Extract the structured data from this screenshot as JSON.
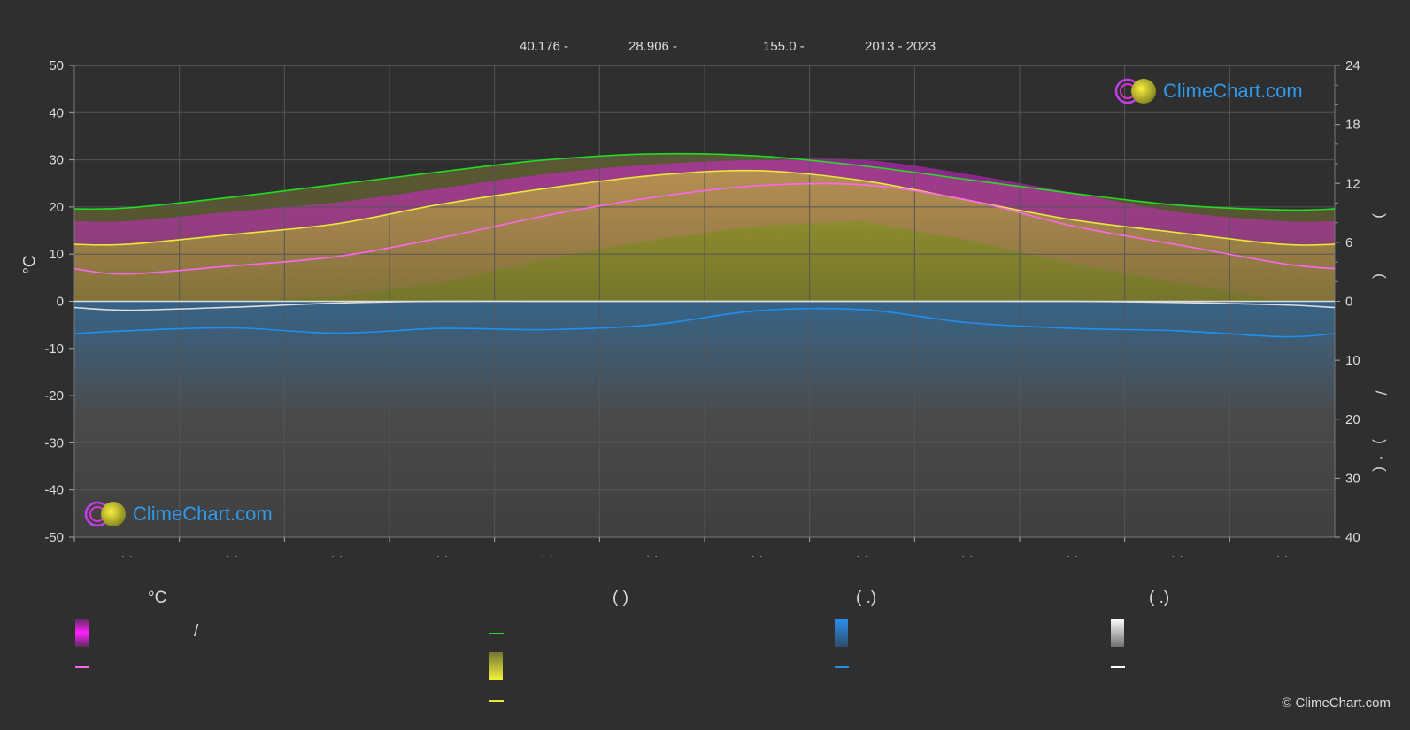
{
  "header": {
    "latitude": "40.176 -",
    "longitude": "28.906 -",
    "elevation": "155.0 -",
    "years": "2013 - 2023"
  },
  "axes": {
    "left_unit": "°C",
    "left_ticks": [
      "50",
      "40",
      "30",
      "20",
      "10",
      "0",
      "-10",
      "-20",
      "-30",
      "-40",
      "-50"
    ],
    "right_ticks_top": [
      "24",
      "18",
      "12",
      "6",
      "0"
    ],
    "right_ticks_bottom": [
      "10",
      "20",
      "30",
      "40"
    ],
    "right_unit_chars": [
      ")",
      "(",
      "/",
      ")",
      "(",
      "·"
    ],
    "month_labels": [
      "· ·",
      "· ·",
      "· ·",
      "· ·",
      "· ·",
      "· ·",
      "· ·",
      "· ·",
      "· ·",
      "· ·",
      "· ·",
      "· ·"
    ]
  },
  "legend": {
    "temp_head": "°C",
    "sun_head": "(          )",
    "rain_head": "(    .)",
    "snow_head": "(    .)",
    "temp_range_slash": "/"
  },
  "logo": {
    "text": "ClimeChart.com"
  },
  "copyright": "© ClimeChart.com",
  "colors": {
    "background": "#2f2f2f",
    "grid": "#555555",
    "daylight": "#22dd22",
    "sunshine": "#e8e83a",
    "temp_avg": "#ff66ee",
    "temp_range": "#e020e0",
    "rain": "#2090f0",
    "snow": "#dddddd"
  },
  "chart_data": {
    "type": "area",
    "x": [
      "Jan",
      "Feb",
      "Mar",
      "Apr",
      "May",
      "Jun",
      "Jul",
      "Aug",
      "Sep",
      "Oct",
      "Nov",
      "Dec"
    ],
    "ylim_left": [
      -50,
      50
    ],
    "ylim_right_hours": [
      0,
      24
    ],
    "ylim_right_mm": [
      0,
      40
    ],
    "grid": true,
    "series": [
      {
        "key": "daylight_hours",
        "axis": "right_hours",
        "values": [
          9.5,
          10.6,
          11.9,
          13.2,
          14.4,
          15.0,
          14.8,
          13.8,
          12.4,
          11.0,
          9.8,
          9.3
        ]
      },
      {
        "key": "sunshine_hours",
        "axis": "right_hours",
        "values": [
          5.8,
          6.8,
          7.9,
          9.9,
          11.5,
          12.8,
          13.3,
          12.3,
          10.3,
          8.3,
          7.0,
          5.8
        ]
      },
      {
        "key": "temp_avg_mean",
        "axis": "left",
        "values": [
          5.8,
          7.5,
          9.5,
          13.5,
          18.2,
          22.0,
          24.5,
          24.7,
          21.5,
          16.0,
          12.0,
          8.0
        ]
      },
      {
        "key": "temp_avg_max",
        "axis": "left",
        "values": [
          17,
          19,
          21,
          24,
          27,
          29,
          30,
          30,
          27,
          23,
          19,
          17
        ]
      },
      {
        "key": "temp_avg_min",
        "axis": "left",
        "values": [
          -2,
          -1,
          1,
          4,
          9,
          13,
          16,
          17,
          13,
          8,
          4,
          -1
        ]
      },
      {
        "key": "rain_mm",
        "axis": "right_mm",
        "values": [
          5.0,
          4.5,
          5.4,
          4.6,
          4.8,
          4.0,
          1.6,
          1.4,
          3.6,
          4.6,
          5.0,
          6.0
        ]
      },
      {
        "key": "snow_mm",
        "axis": "right_mm",
        "values": [
          1.5,
          1.0,
          0.3,
          0.0,
          0.0,
          0.0,
          0.0,
          0.0,
          0.0,
          0.0,
          0.2,
          0.6
        ]
      }
    ]
  }
}
